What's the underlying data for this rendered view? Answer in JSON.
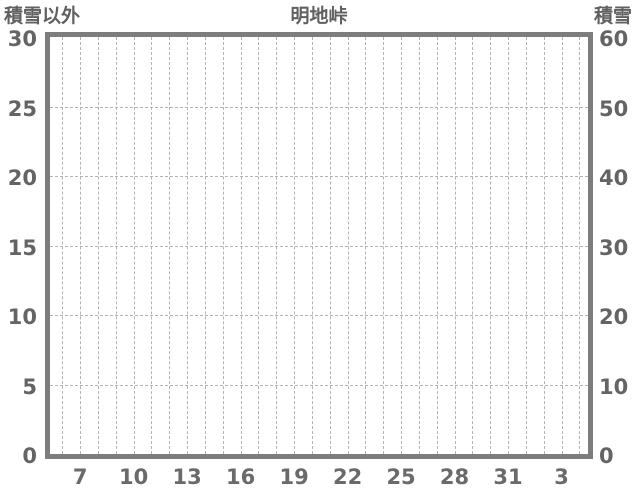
{
  "header": {
    "left_axis_title": "積雪以外",
    "chart_title": "明地峠",
    "right_axis_title": "積雪"
  },
  "chart_data": {
    "type": "line",
    "title": "明地峠",
    "subtitle": "",
    "left_axis": {
      "title": "積雪以外",
      "range": [
        0,
        30
      ],
      "ticks": [
        "30",
        "25",
        "20",
        "15",
        "10",
        "5",
        "0"
      ]
    },
    "right_axis": {
      "title": "積雪",
      "range": [
        0,
        60
      ],
      "ticks": [
        "60",
        "50",
        "40",
        "30",
        "20",
        "10",
        "0"
      ]
    },
    "x_axis": {
      "tick_labels": [
        "7",
        "10",
        "13",
        "16",
        "19",
        "22",
        "25",
        "28",
        "31",
        "3"
      ],
      "gridline_count": 30,
      "label_gridline_indices": [
        1,
        4,
        7,
        10,
        13,
        16,
        19,
        22,
        25,
        28
      ]
    },
    "series": [],
    "grid": true,
    "legend_position": "none"
  },
  "colors": {
    "frame": "#7d7d7d",
    "grid": "#b3b3b3",
    "text": "#606060",
    "background": "#ffffff"
  }
}
